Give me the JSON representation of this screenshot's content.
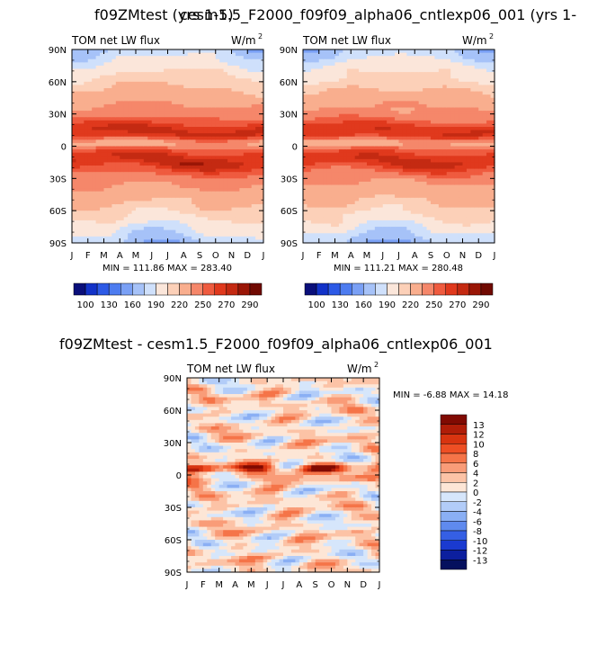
{
  "titles": {
    "left_overlay": "f09ZMtest (yrs 1-5)",
    "right_overlay": "cesm1.5_F2000_f09f09_alpha06_cntlexp06_001 (yrs 1-",
    "diff": "f09ZMtest - cesm1.5_F2000_f09f09_alpha06_cntlexp06_001"
  },
  "chart_data": [
    {
      "type": "heatmap",
      "id": "panel-left",
      "title": "TOM net LW flux",
      "units": "W/m",
      "units_sup": "2",
      "x_ticks": [
        "J",
        "F",
        "M",
        "A",
        "M",
        "J",
        "J",
        "A",
        "S",
        "O",
        "N",
        "D",
        "J"
      ],
      "y_ticks": [
        "90N",
        "60N",
        "30N",
        "0",
        "30S",
        "60S",
        "90S"
      ],
      "ylim": [
        -90,
        90
      ],
      "stats": "MIN = 111.86  MAX = 283.40",
      "min": 111.86,
      "max": 283.4,
      "colorbar": {
        "labels": [
          "100",
          "130",
          "160",
          "190",
          "220",
          "250",
          "270",
          "290"
        ],
        "colors": [
          "#0a0f7a",
          "#1232c8",
          "#2d5ae6",
          "#4d7cf0",
          "#7aa0f5",
          "#a6c2f8",
          "#cfe0fb",
          "#fbe6da",
          "#fcd0b8",
          "#f9ae8e",
          "#f5876a",
          "#ef5b3f",
          "#e0391d",
          "#c42a12",
          "#9a1606",
          "#700a02"
        ]
      },
      "field_model": "zonal",
      "amplitude": 1.0
    },
    {
      "type": "heatmap",
      "id": "panel-right",
      "title": "TOM net LW flux",
      "units": "W/m",
      "units_sup": "2",
      "x_ticks": [
        "J",
        "F",
        "M",
        "A",
        "M",
        "J",
        "J",
        "A",
        "S",
        "O",
        "N",
        "D",
        "J"
      ],
      "y_ticks": [
        "90N",
        "60N",
        "30N",
        "0",
        "30S",
        "60S",
        "90S"
      ],
      "ylim": [
        -90,
        90
      ],
      "stats": "MIN = 111.21  MAX = 280.48",
      "min": 111.21,
      "max": 280.48,
      "colorbar": {
        "labels": [
          "100",
          "130",
          "160",
          "190",
          "220",
          "250",
          "270",
          "290"
        ],
        "colors": [
          "#0a0f7a",
          "#1232c8",
          "#2d5ae6",
          "#4d7cf0",
          "#7aa0f5",
          "#a6c2f8",
          "#cfe0fb",
          "#fbe6da",
          "#fcd0b8",
          "#f9ae8e",
          "#f5876a",
          "#ef5b3f",
          "#e0391d",
          "#c42a12",
          "#9a1606",
          "#700a02"
        ]
      },
      "field_model": "zonal",
      "amplitude": 0.98
    },
    {
      "type": "heatmap",
      "id": "panel-diff",
      "title": "TOM net LW flux",
      "units": "W/m",
      "units_sup": "2",
      "x_ticks": [
        "J",
        "F",
        "M",
        "A",
        "M",
        "J",
        "J",
        "A",
        "S",
        "O",
        "N",
        "D",
        "J"
      ],
      "y_ticks": [
        "90N",
        "60N",
        "30N",
        "0",
        "30S",
        "60S",
        "90S"
      ],
      "ylim": [
        -90,
        90
      ],
      "stats": "MIN = -6.88 MAX = 14.18",
      "min": -6.88,
      "max": 14.18,
      "colorbar": {
        "labels": [
          "13",
          "12",
          "10",
          "8",
          "6",
          "4",
          "2",
          "0",
          "-2",
          "-4",
          "-6",
          "-8",
          "-10",
          "-12",
          "-13"
        ],
        "colors": [
          "#800a02",
          "#b01d08",
          "#d83410",
          "#ee4f24",
          "#f57448",
          "#f99c78",
          "#fcc3a6",
          "#fde6d6",
          "#d6e6fb",
          "#b2ccf8",
          "#8aaff4",
          "#5f8aee",
          "#355fe4",
          "#1a3ad0",
          "#0c1f9e",
          "#05105e"
        ]
      },
      "field_model": "diff",
      "amplitude": 1.0
    }
  ]
}
